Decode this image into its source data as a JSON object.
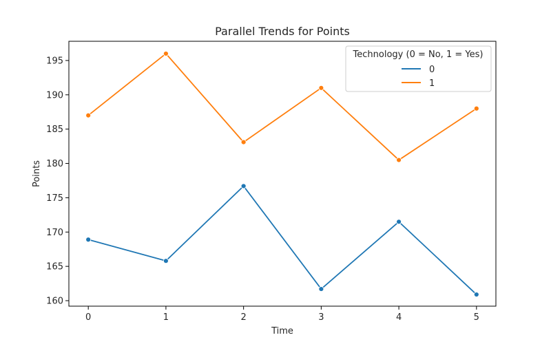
{
  "chart_data": {
    "type": "line",
    "title": "Parallel Trends for Points",
    "xlabel": "Time",
    "ylabel": "Points",
    "x": [
      0,
      1,
      2,
      3,
      4,
      5
    ],
    "xlim": [
      -0.25,
      5.25
    ],
    "ylim": [
      159.2,
      197.8
    ],
    "yticks": [
      160,
      165,
      170,
      175,
      180,
      185,
      190,
      195
    ],
    "xticks": [
      0,
      1,
      2,
      3,
      4,
      5
    ],
    "grid": false,
    "legend": {
      "title": "Technology (0 = No, 1 = Yes)",
      "placement": "upper right"
    },
    "series": [
      {
        "name": "0",
        "color": "#1f77b4",
        "values": [
          168.9,
          165.8,
          176.7,
          161.7,
          171.5,
          160.9
        ]
      },
      {
        "name": "1",
        "color": "#ff7f0e",
        "values": [
          187.0,
          196.0,
          183.1,
          191.0,
          180.5,
          188.0
        ]
      }
    ]
  }
}
